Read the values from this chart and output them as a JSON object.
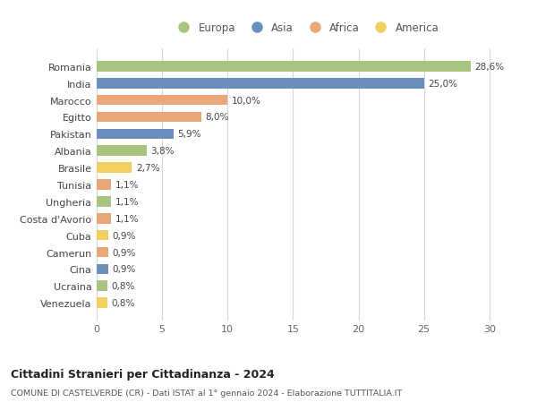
{
  "countries": [
    "Venezuela",
    "Ucraina",
    "Cina",
    "Camerun",
    "Cuba",
    "Costa d'Avorio",
    "Ungheria",
    "Tunisia",
    "Brasile",
    "Albania",
    "Pakistan",
    "Egitto",
    "Marocco",
    "India",
    "Romania"
  ],
  "values": [
    0.8,
    0.8,
    0.9,
    0.9,
    0.9,
    1.1,
    1.1,
    1.1,
    2.7,
    3.8,
    5.9,
    8.0,
    10.0,
    25.0,
    28.6
  ],
  "labels": [
    "0,8%",
    "0,8%",
    "0,9%",
    "0,9%",
    "0,9%",
    "1,1%",
    "1,1%",
    "1,1%",
    "2,7%",
    "3,8%",
    "5,9%",
    "8,0%",
    "10,0%",
    "25,0%",
    "28,6%"
  ],
  "continents": [
    "America",
    "Europa",
    "Asia",
    "Africa",
    "America",
    "Africa",
    "Europa",
    "Africa",
    "America",
    "Europa",
    "Asia",
    "Africa",
    "Africa",
    "Asia",
    "Europa"
  ],
  "continent_colors": {
    "Europa": "#a8c47e",
    "Asia": "#6b8ebf",
    "Africa": "#e8a87a",
    "America": "#f0d060"
  },
  "legend_order": [
    "Europa",
    "Asia",
    "Africa",
    "America"
  ],
  "title": "Cittadini Stranieri per Cittadinanza - 2024",
  "subtitle": "COMUNE DI CASTELVERDE (CR) - Dati ISTAT al 1° gennaio 2024 - Elaborazione TUTTITALIA.IT",
  "xlim": [
    0,
    32
  ],
  "xticks": [
    0,
    5,
    10,
    15,
    20,
    25,
    30
  ],
  "bg_color": "#ffffff",
  "grid_color": "#d8d8d8",
  "bar_height": 0.62
}
